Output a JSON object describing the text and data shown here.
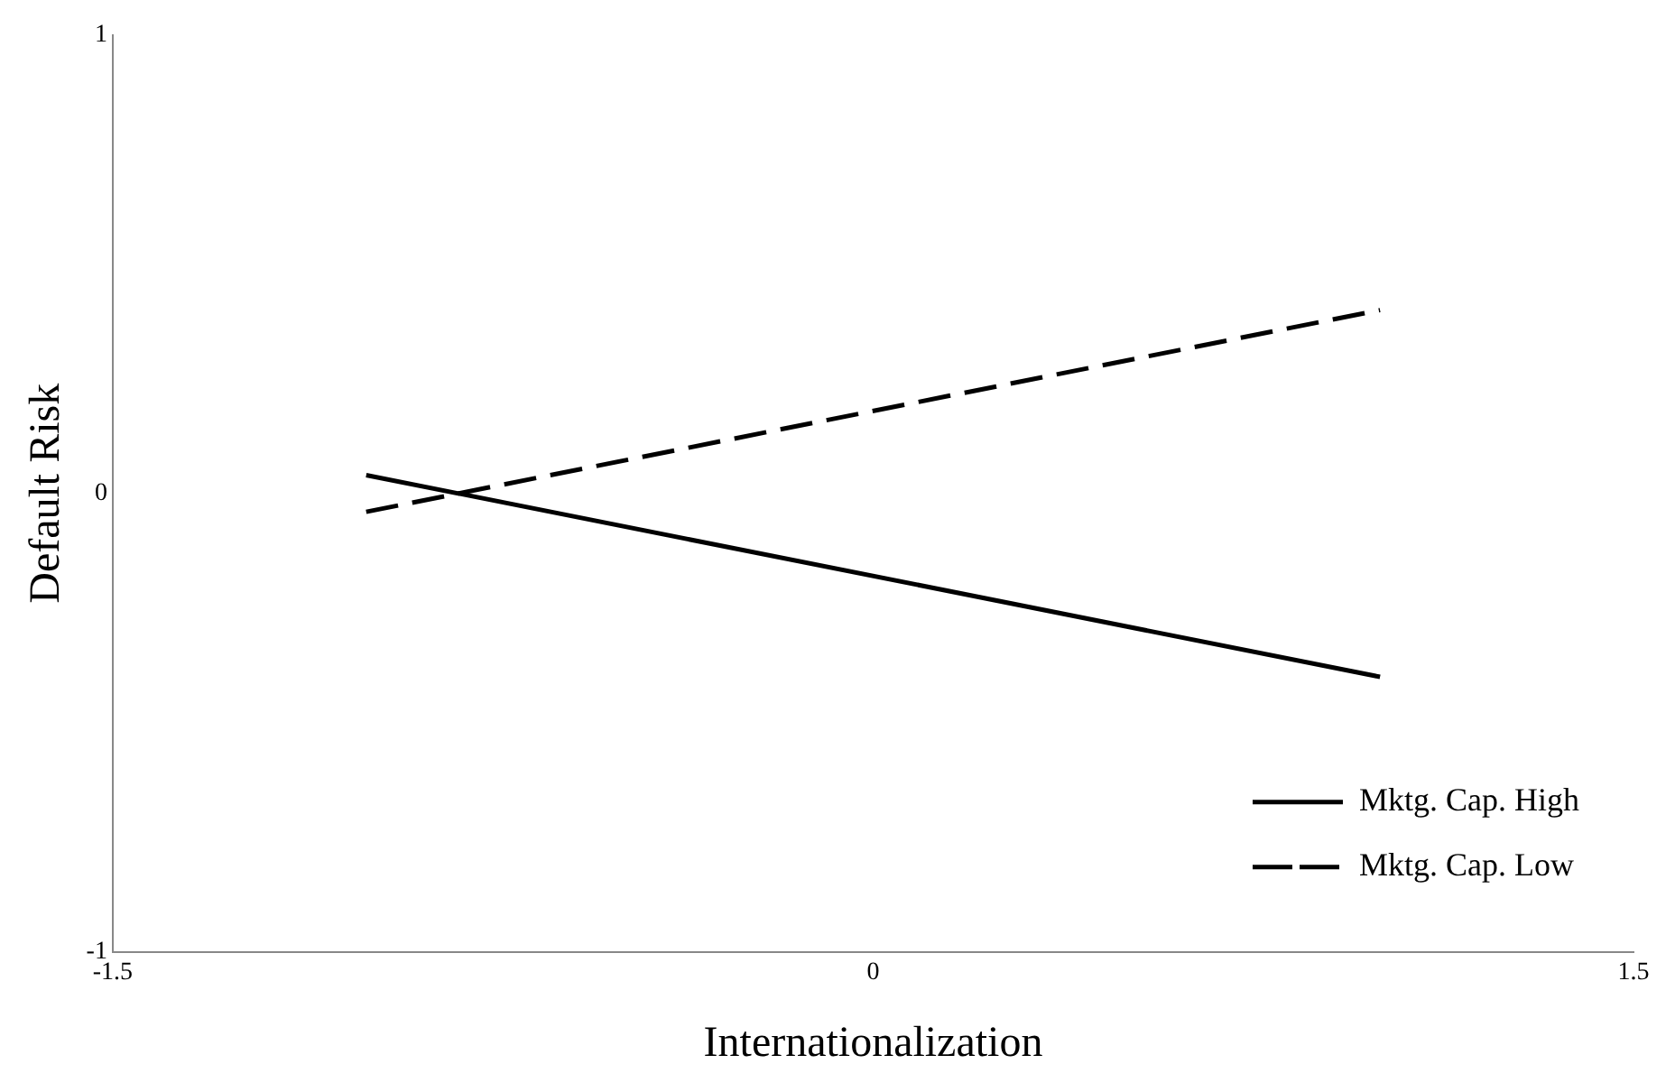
{
  "chart_data": {
    "type": "line",
    "xlabel": "Internationalization",
    "ylabel": "Default Risk",
    "x": [
      -1,
      1
    ],
    "series": [
      {
        "name": "Mktg. Cap. High",
        "color": "#000000",
        "values": [
          0.04,
          -0.4
        ],
        "line_style": "solid"
      },
      {
        "name": "Mktg. Cap. Low",
        "color": "#000000",
        "values": [
          -0.04,
          0.4
        ],
        "line_style": "dashed"
      }
    ],
    "xlim": [
      -1.5,
      1.5
    ],
    "xticks": [
      -1.5,
      0,
      1.5
    ],
    "ylim": [
      -1,
      1
    ],
    "yticks": [
      -1,
      0,
      1
    ],
    "grid": false,
    "legend": "bottom right",
    "marker": "none"
  }
}
